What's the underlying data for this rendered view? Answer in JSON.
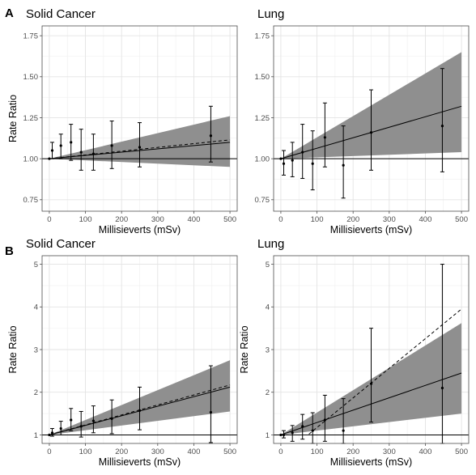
{
  "figure": {
    "row_labels": [
      "A",
      "B"
    ]
  },
  "colors": {
    "band": "#8f8f8f",
    "grid": "#e3e3e3",
    "panel_border": "#4d4d4d",
    "line": "#000000",
    "tick_text": "#4d4d4d"
  },
  "chart_data": [
    {
      "type": "line",
      "row": "A",
      "title": "Solid Cancer",
      "xlabel": "Millisieverts (mSv)",
      "ylabel": "Rate Ratio",
      "xlim": [
        -20,
        520
      ],
      "ylim": [
        0.68,
        1.81
      ],
      "xticks": [
        0,
        100,
        200,
        300,
        400,
        500
      ],
      "yticks": [
        0.75,
        1.0,
        1.25,
        1.5,
        1.75
      ],
      "ytick_labels": [
        "0.75",
        "1.00",
        "1.25",
        "1.50",
        "1.75"
      ],
      "reference_y": 1.0,
      "grid": true,
      "band": {
        "x": [
          0,
          500
        ],
        "lower": [
          1.0,
          0.95
        ],
        "upper": [
          1.0,
          1.26
        ]
      },
      "fit_solid": {
        "x": [
          0,
          500
        ],
        "y": [
          1.0,
          1.1
        ]
      },
      "fit_dashed": {
        "x": [
          0,
          500
        ],
        "y": [
          1.0,
          1.115
        ]
      },
      "points": [
        {
          "x": 0,
          "y": 1.0,
          "lo": 1.0,
          "hi": 1.0
        },
        {
          "x": 8,
          "y": 1.05,
          "lo": 1.0,
          "hi": 1.1
        },
        {
          "x": 32,
          "y": 1.08,
          "lo": 1.0,
          "hi": 1.15
        },
        {
          "x": 60,
          "y": 1.1,
          "lo": 0.99,
          "hi": 1.21
        },
        {
          "x": 88,
          "y": 1.04,
          "lo": 0.93,
          "hi": 1.18
        },
        {
          "x": 122,
          "y": 1.03,
          "lo": 0.93,
          "hi": 1.15
        },
        {
          "x": 173,
          "y": 1.08,
          "lo": 0.94,
          "hi": 1.23
        },
        {
          "x": 250,
          "y": 1.07,
          "lo": 0.95,
          "hi": 1.22
        },
        {
          "x": 447,
          "y": 1.14,
          "lo": 0.98,
          "hi": 1.32
        }
      ]
    },
    {
      "type": "line",
      "row": "A",
      "title": "Lung",
      "xlabel": "Millisieverts (mSv)",
      "ylabel": "",
      "xlim": [
        -20,
        520
      ],
      "ylim": [
        0.68,
        1.81
      ],
      "xticks": [
        0,
        100,
        200,
        300,
        400,
        500
      ],
      "yticks": [
        0.75,
        1.0,
        1.25,
        1.5,
        1.75
      ],
      "ytick_labels": [
        "0.75",
        "1.00",
        "1.25",
        "1.50",
        "1.75"
      ],
      "reference_y": 1.0,
      "grid": true,
      "band": {
        "x": [
          0,
          500
        ],
        "lower": [
          1.0,
          1.04
        ],
        "upper": [
          1.0,
          1.65
        ]
      },
      "fit_solid": {
        "x": [
          0,
          500
        ],
        "y": [
          1.0,
          1.32
        ]
      },
      "fit_dashed": null,
      "points": [
        {
          "x": 0,
          "y": 1.0,
          "lo": 1.0,
          "hi": 1.0
        },
        {
          "x": 8,
          "y": 0.97,
          "lo": 0.9,
          "hi": 1.05
        },
        {
          "x": 32,
          "y": 0.99,
          "lo": 0.89,
          "hi": 1.1
        },
        {
          "x": 60,
          "y": 1.04,
          "lo": 0.88,
          "hi": 1.21
        },
        {
          "x": 88,
          "y": 0.97,
          "lo": 0.81,
          "hi": 1.17
        },
        {
          "x": 122,
          "y": 1.13,
          "lo": 0.95,
          "hi": 1.34
        },
        {
          "x": 173,
          "y": 0.96,
          "lo": 0.76,
          "hi": 1.2
        },
        {
          "x": 250,
          "y": 1.16,
          "lo": 0.93,
          "hi": 1.42
        },
        {
          "x": 447,
          "y": 1.2,
          "lo": 0.92,
          "hi": 1.55
        }
      ]
    },
    {
      "type": "line",
      "row": "B",
      "title": "Solid Cancer",
      "xlabel": "Millisieverts (mSv)",
      "ylabel": "Rate Ratio",
      "xlim": [
        -20,
        520
      ],
      "ylim": [
        0.8,
        5.2
      ],
      "xticks": [
        0,
        100,
        200,
        300,
        400,
        500
      ],
      "yticks": [
        1,
        2,
        3,
        4,
        5
      ],
      "ytick_labels": [
        "1",
        "2",
        "3",
        "4",
        "5"
      ],
      "reference_y": 1.0,
      "grid": true,
      "band": {
        "x": [
          0,
          500
        ],
        "lower": [
          1.0,
          1.55
        ],
        "upper": [
          1.0,
          2.75
        ]
      },
      "fit_solid": {
        "x": [
          0,
          500
        ],
        "y": [
          1.0,
          2.12
        ]
      },
      "fit_dashed": {
        "x": [
          0,
          500
        ],
        "y": [
          1.0,
          2.17
        ]
      },
      "points": [
        {
          "x": 0,
          "y": 1.0,
          "lo": 1.0,
          "hi": 1.0
        },
        {
          "x": 8,
          "y": 1.05,
          "lo": 0.97,
          "hi": 1.15
        },
        {
          "x": 32,
          "y": 1.15,
          "lo": 1.0,
          "hi": 1.32
        },
        {
          "x": 60,
          "y": 1.35,
          "lo": 1.1,
          "hi": 1.62
        },
        {
          "x": 88,
          "y": 1.2,
          "lo": 0.95,
          "hi": 1.55
        },
        {
          "x": 122,
          "y": 1.33,
          "lo": 1.05,
          "hi": 1.68
        },
        {
          "x": 173,
          "y": 1.38,
          "lo": 1.03,
          "hi": 1.82
        },
        {
          "x": 250,
          "y": 1.57,
          "lo": 1.12,
          "hi": 2.12
        },
        {
          "x": 447,
          "y": 1.53,
          "lo": 0.82,
          "hi": 2.62
        }
      ]
    },
    {
      "type": "line",
      "row": "B",
      "title": "Lung",
      "xlabel": "Millisieverts (mSv)",
      "ylabel": "Rate Ratio",
      "xlim": [
        -20,
        520
      ],
      "ylim": [
        0.8,
        5.2
      ],
      "xticks": [
        0,
        100,
        200,
        300,
        400,
        500
      ],
      "yticks": [
        1,
        2,
        3,
        4,
        5
      ],
      "ytick_labels": [
        "1",
        "2",
        "3",
        "4",
        "5"
      ],
      "reference_y": 1.0,
      "grid": true,
      "band": {
        "x": [
          0,
          500
        ],
        "lower": [
          1.0,
          1.5
        ],
        "upper": [
          1.0,
          3.62
        ]
      },
      "fit_solid": {
        "x": [
          0,
          500
        ],
        "y": [
          1.0,
          2.45
        ]
      },
      "fit_dashed": {
        "x": [
          0,
          75,
          500
        ],
        "y": [
          1.0,
          1.0,
          3.95
        ]
      },
      "points": [
        {
          "x": 0,
          "y": 1.0,
          "lo": 1.0,
          "hi": 1.0
        },
        {
          "x": 8,
          "y": 1.0,
          "lo": 0.93,
          "hi": 1.1
        },
        {
          "x": 32,
          "y": 1.05,
          "lo": 0.85,
          "hi": 1.22
        },
        {
          "x": 60,
          "y": 1.2,
          "lo": 0.9,
          "hi": 1.48
        },
        {
          "x": 88,
          "y": 1.1,
          "lo": 0.8,
          "hi": 1.52
        },
        {
          "x": 122,
          "y": 1.35,
          "lo": 0.85,
          "hi": 1.93
        },
        {
          "x": 173,
          "y": 1.1,
          "lo": 0.8,
          "hi": 1.85
        },
        {
          "x": 250,
          "y": 2.2,
          "lo": 1.3,
          "hi": 3.5
        },
        {
          "x": 447,
          "y": 2.1,
          "lo": 0.8,
          "hi": 5.0
        }
      ]
    }
  ]
}
